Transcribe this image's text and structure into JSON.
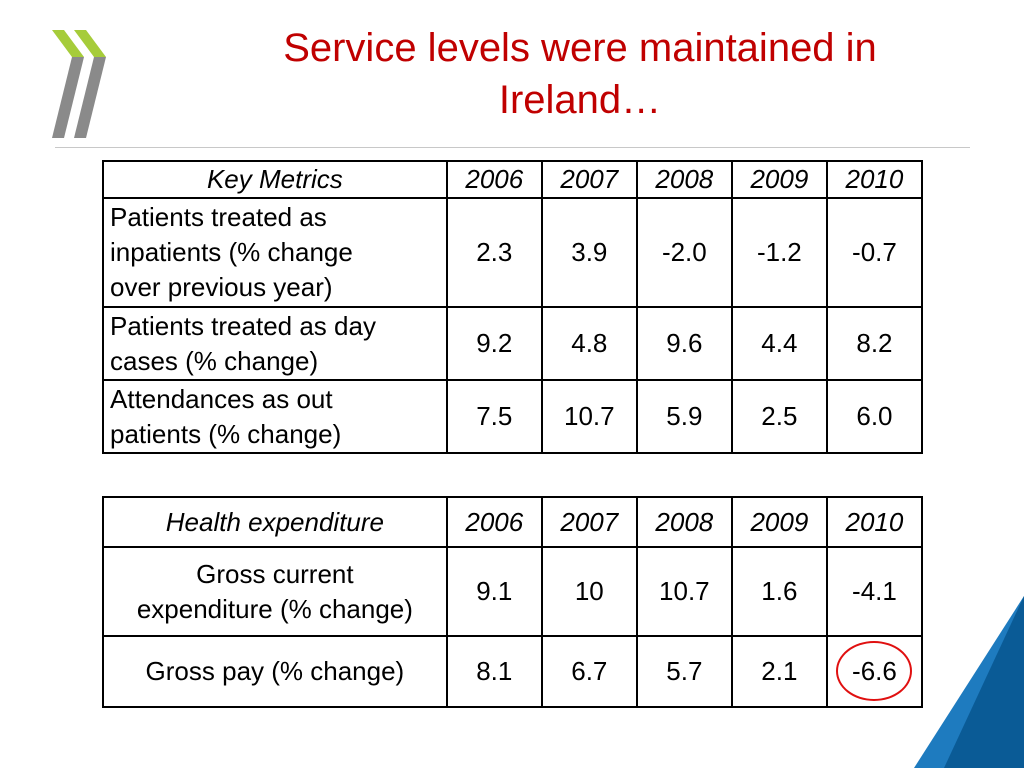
{
  "slide": {
    "title": "Service levels were maintained in Ireland…"
  },
  "colors": {
    "title": "#c00000",
    "logo_light": "#a6cc3a",
    "logo_dark": "#888888",
    "corner_blue": "#0a5b96",
    "corner_light": "#1e7bbf",
    "highlight_circle": "#e01010"
  },
  "metrics_table": {
    "header": [
      "Key Metrics",
      "2006",
      "2007",
      "2008",
      "2009",
      "2010"
    ],
    "rows": [
      {
        "label_lines": [
          "Patients treated as",
          "inpatients (% change",
          "over previous year)"
        ],
        "values": [
          "2.3",
          "3.9",
          "-2.0",
          "-1.2",
          "-0.7"
        ]
      },
      {
        "label_lines": [
          "Patients treated as day",
          "cases (% change)"
        ],
        "values": [
          "9.2",
          "4.8",
          "9.6",
          "4.4",
          "8.2"
        ]
      },
      {
        "label_lines": [
          "Attendances as out",
          "patients (% change)"
        ],
        "values": [
          "7.5",
          "10.7",
          "5.9",
          "2.5",
          "6.0"
        ]
      }
    ]
  },
  "expenditure_table": {
    "header": [
      "Health expenditure",
      "2006",
      "2007",
      "2008",
      "2009",
      "2010"
    ],
    "rows": [
      {
        "label_lines": [
          "Gross current",
          "expenditure (% change)"
        ],
        "values": [
          "9.1",
          "10",
          "10.7",
          "1.6",
          "-4.1"
        ]
      },
      {
        "label_lines": [
          "Gross pay (% change)"
        ],
        "values": [
          "8.1",
          "6.7",
          "5.7",
          "2.1",
          "-6.6"
        ]
      }
    ],
    "highlighted_cell": "-6.6"
  }
}
